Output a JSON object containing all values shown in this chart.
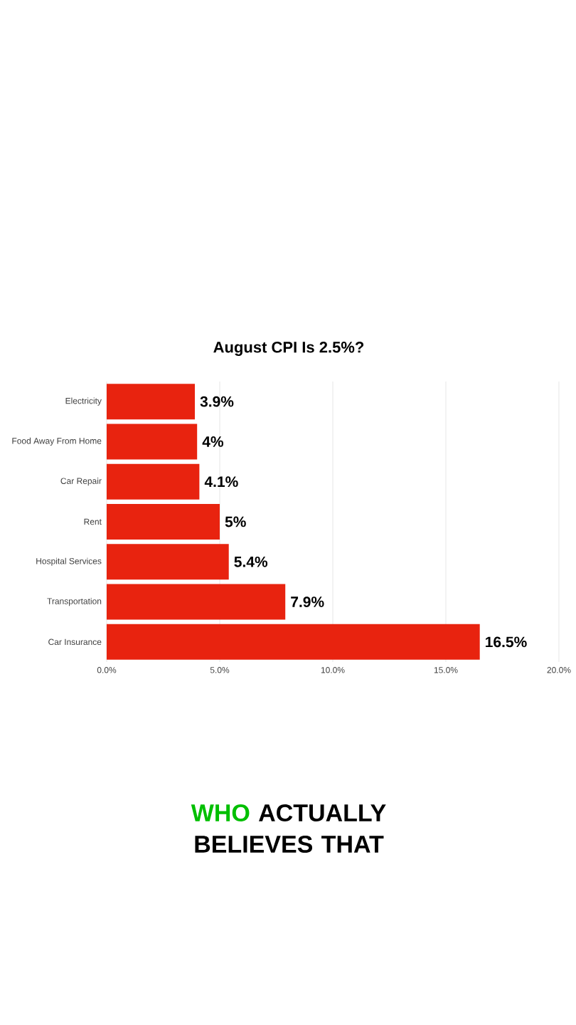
{
  "chart_data": {
    "type": "bar",
    "orientation": "horizontal",
    "title": "August CPI Is 2.5%?",
    "categories": [
      "Electricity",
      "Food Away From Home",
      "Car Repair",
      "Rent",
      "Hospital Services",
      "Transportation",
      "Car Insurance"
    ],
    "values": [
      3.9,
      4,
      4.1,
      5,
      5.4,
      7.9,
      16.5
    ],
    "value_labels": [
      "3.9%",
      "4%",
      "4.1%",
      "5%",
      "5.4%",
      "7.9%",
      "16.5%"
    ],
    "color": "#e8230f",
    "xlim": [
      0,
      20
    ],
    "xticks": [
      {
        "value": 0,
        "label": "0.0%"
      },
      {
        "value": 5,
        "label": "5.0%"
      },
      {
        "value": 10,
        "label": "10.0%"
      },
      {
        "value": 15,
        "label": "15.0%"
      },
      {
        "value": 20,
        "label": "20.0%"
      }
    ],
    "grid": "x",
    "annotations": [
      "WHO",
      "ACTUALLY BELIEVES THAT"
    ]
  }
}
